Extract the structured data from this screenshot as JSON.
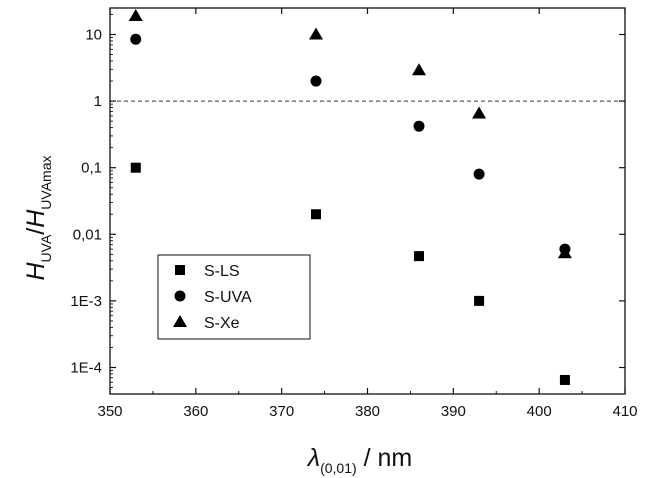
{
  "chart_data": {
    "type": "scatter",
    "x_axis": {
      "label_symbol": "λ",
      "label_subscript": "(0,01)",
      "label_unit": " / nm",
      "ticks": [
        350,
        360,
        370,
        380,
        390,
        400,
        410
      ],
      "tick_labels": [
        "350",
        "360",
        "370",
        "380",
        "390",
        "400",
        "410"
      ],
      "range": [
        350,
        410
      ]
    },
    "y_axis": {
      "scale": "log",
      "label_h": "H",
      "label_sub1": "UVA",
      "label_slash": "/",
      "label_h2": "H",
      "label_sub2": "UVAmax",
      "ticks": [
        0.0001,
        0.001,
        0.01,
        0.1,
        1,
        10
      ],
      "tick_labels": [
        "1E-4",
        "1E-3",
        "0,01",
        "0,1",
        "1",
        "10"
      ],
      "range": [
        4e-05,
        25
      ]
    },
    "reference_line": {
      "y": 1,
      "style": "dashed"
    },
    "series": [
      {
        "name": "S-LS",
        "marker": "square",
        "points": [
          [
            353,
            0.1
          ],
          [
            374,
            0.02
          ],
          [
            386,
            0.0047
          ],
          [
            393,
            0.001
          ],
          [
            403,
            6.5e-05
          ]
        ]
      },
      {
        "name": "S-UVA",
        "marker": "circle",
        "points": [
          [
            353,
            8.5
          ],
          [
            374,
            2.0
          ],
          [
            386,
            0.42
          ],
          [
            393,
            0.08
          ],
          [
            403,
            0.006
          ]
        ]
      },
      {
        "name": "S-Xe",
        "marker": "triangle",
        "points": [
          [
            353,
            19
          ],
          [
            374,
            10
          ],
          [
            386,
            2.9
          ],
          [
            393,
            0.65
          ],
          [
            403,
            0.0052
          ]
        ]
      }
    ],
    "legend": {
      "placement": "lower-left"
    },
    "grid": false
  }
}
